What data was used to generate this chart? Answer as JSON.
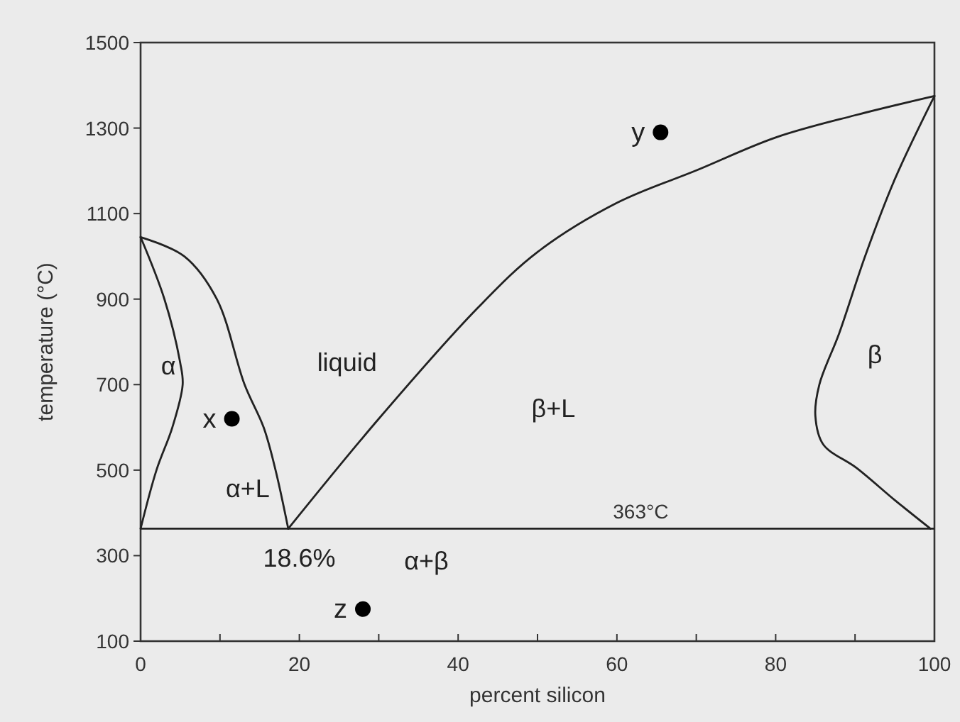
{
  "chart_data": {
    "type": "line",
    "xlabel": "percent silicon",
    "ylabel": "temperature (°C)",
    "xlim": [
      0,
      100
    ],
    "ylim": [
      100,
      1500
    ],
    "xticks": [
      0,
      {
        "value": 10,
        "label": null
      },
      20,
      {
        "value": 30,
        "label": null
      },
      40,
      {
        "value": 50,
        "label": null
      },
      60,
      {
        "value": 70,
        "label": null
      },
      80,
      {
        "value": 90,
        "label": null
      },
      100
    ],
    "yticks": [
      100,
      300,
      500,
      700,
      900,
      1100,
      1300,
      1500
    ],
    "grid": false,
    "marker": "none",
    "line_style": "solid",
    "series": [
      {
        "color": "#222222",
        "x": [
          0,
          5.5,
          9.6,
          13.1,
          15.5,
          17,
          18.6
        ],
        "values": [
          1045,
          1000,
          900,
          700,
          600,
          500,
          363
        ]
      },
      {
        "color": "#222222",
        "x": [
          0,
          3,
          5,
          5.3,
          4,
          2,
          0
        ],
        "values": [
          1045,
          900,
          750,
          700,
          600,
          500,
          363
        ]
      },
      {
        "color": "#222222",
        "x": [
          18.6,
          30,
          42.5,
          50,
          60,
          70,
          80,
          90,
          100
        ],
        "values": [
          363,
          620,
          880,
          1010,
          1125,
          1201,
          1278,
          1330,
          1375
        ]
      },
      {
        "color": "#222222",
        "x": [
          100,
          95,
          91.3,
          88,
          85.5,
          85,
          86,
          90.2,
          95,
          99.5
        ],
        "values": [
          1375,
          1180,
          1002,
          820,
          700,
          627,
          560,
          505,
          430,
          363
        ]
      },
      {
        "type": "scatter",
        "marker": "circle",
        "color": "#000000",
        "x": [
          11.5,
          65.5,
          28
        ],
        "values": [
          620,
          1290,
          175
        ]
      }
    ],
    "ref_lines": [
      {
        "axis": "y",
        "value": 363,
        "label": "363°C",
        "color": "#222222"
      }
    ],
    "annotations": [
      {
        "text": "x",
        "x": 11.5,
        "y": 620
      },
      {
        "text": "y",
        "x": 65.5,
        "y": 1290
      },
      {
        "text": "z",
        "x": 28,
        "y": 175
      },
      "α",
      "liquid",
      "α+L",
      "β+L",
      "β",
      "α+β",
      "18.6%"
    ]
  }
}
